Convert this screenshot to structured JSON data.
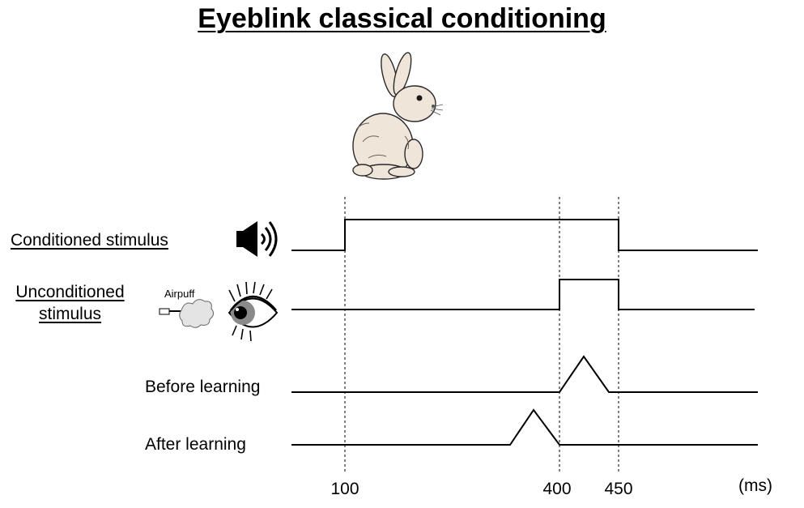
{
  "title": "Eyeblink classical conditioning",
  "rows": {
    "cs_label": "Conditioned stimulus",
    "us_label_line1": "Unconditioned",
    "us_label_line2": "stimulus",
    "before_label": "Before learning",
    "after_label": "After learning"
  },
  "airpuff_label": "Airpuff",
  "icons": {
    "rabbit": "rabbit-illustration",
    "speaker": "speaker-sound-icon",
    "airpuff": "airpuff-nozzle-icon",
    "eye": "eye-icon"
  },
  "axis": {
    "ticks": [
      "100",
      "400",
      "450"
    ],
    "unit": "(ms)"
  },
  "timing_ms": {
    "cs_on": 100,
    "cs_off": 450,
    "us_on": 400,
    "us_off": 450
  },
  "colors": {
    "line": "#000000",
    "rabbit_fill": "#efe5d8"
  }
}
